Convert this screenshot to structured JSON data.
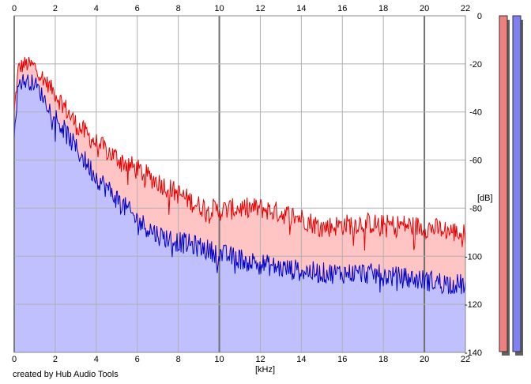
{
  "credit": "created by Hub Audio Tools",
  "chart_data": {
    "type": "area",
    "xlabel": "[kHz]",
    "ylabel": "[dB]",
    "xlim": [
      0,
      22
    ],
    "ylim": [
      -140,
      0
    ],
    "xticks": [
      0,
      2,
      4,
      6,
      8,
      10,
      12,
      14,
      16,
      18,
      20,
      22
    ],
    "yticks": [
      0,
      -20,
      -40,
      -60,
      -80,
      -100,
      -120,
      -140
    ],
    "grid": true,
    "series": [
      {
        "color": "#e80000",
        "fill": "#ffc4c4",
        "x": [
          0,
          0.2,
          0.5,
          1.0,
          1.5,
          2,
          3,
          4,
          5,
          6,
          7,
          8,
          9,
          10,
          11,
          12,
          13,
          14,
          15,
          16,
          17,
          18,
          19,
          20,
          21,
          22
        ],
        "y": [
          -40,
          -22,
          -20,
          -21,
          -27,
          -32,
          -45,
          -53,
          -59,
          -64,
          -69,
          -74,
          -79,
          -81,
          -80,
          -80,
          -82,
          -84,
          -88,
          -87,
          -86,
          -87,
          -87,
          -88,
          -89,
          -91
        ]
      },
      {
        "color": "#0000c8",
        "fill": "#c0c0ff",
        "x": [
          0,
          0.2,
          0.5,
          1.0,
          1.5,
          2,
          3,
          4,
          5,
          6,
          7,
          8,
          9,
          10,
          11,
          12,
          13,
          14,
          15,
          16,
          17,
          18,
          19,
          20,
          21,
          22
        ],
        "y": [
          -48,
          -28,
          -27,
          -28,
          -35,
          -42,
          -55,
          -67,
          -76,
          -85,
          -91,
          -94,
          -96,
          -99,
          -101,
          -103,
          -105,
          -106,
          -107,
          -107,
          -107,
          -108,
          -109,
          -110,
          -111,
          -112
        ]
      }
    ],
    "meters": [
      {
        "color": "#f08080"
      },
      {
        "color": "#8080f0"
      }
    ]
  }
}
